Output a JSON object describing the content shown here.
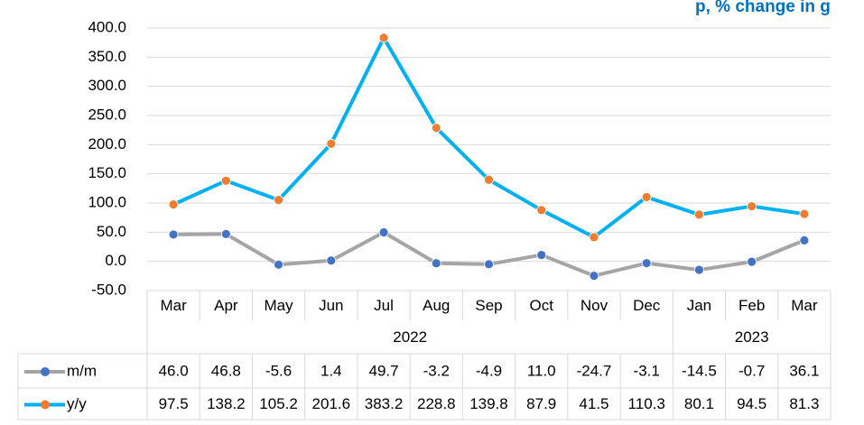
{
  "chart_data": {
    "type": "line",
    "title": "p, % change in g",
    "categories": [
      "Mar",
      "Apr",
      "May",
      "Jun",
      "Jul",
      "Aug",
      "Sep",
      "Oct",
      "Nov",
      "Dec",
      "Jan",
      "Feb",
      "Mar"
    ],
    "category_groups": [
      {
        "label": "2022",
        "span": 10
      },
      {
        "label": "2023",
        "span": 3
      }
    ],
    "series": [
      {
        "name": "m/m",
        "color": "#a5a5a5",
        "marker_color": "#4472c4",
        "values": [
          46.0,
          46.8,
          -5.6,
          1.4,
          49.7,
          -3.2,
          -4.9,
          11.0,
          -24.7,
          -3.1,
          -14.5,
          -0.7,
          36.1
        ],
        "value_labels": [
          "46.0",
          "46.8",
          "-5.6",
          "1.4",
          "49.7",
          "-3.2",
          "-4.9",
          "11.0",
          "-24.7",
          "-3.1",
          "-14.5",
          "-0.7",
          "36.1"
        ]
      },
      {
        "name": "y/y",
        "color": "#00b0f0",
        "marker_color": "#ed7d31",
        "values": [
          97.5,
          138.2,
          105.2,
          201.6,
          383.2,
          228.8,
          139.8,
          87.9,
          41.5,
          110.3,
          80.1,
          94.5,
          81.3
        ],
        "value_labels": [
          "97.5",
          "138.2",
          "105.2",
          "201.6",
          "383.2",
          "228.8",
          "139.8",
          "87.9",
          "41.5",
          "110.3",
          "80.1",
          "94.5",
          "81.3"
        ]
      }
    ],
    "ylim": [
      -50,
      400
    ],
    "yticks": [
      {
        "value": -50,
        "label": "-50.0"
      },
      {
        "value": 0,
        "label": "0.0"
      },
      {
        "value": 50,
        "label": "50.0"
      },
      {
        "value": 100,
        "label": "100.0"
      },
      {
        "value": 150,
        "label": "150.0"
      },
      {
        "value": 200,
        "label": "200.0"
      },
      {
        "value": 250,
        "label": "250.0"
      },
      {
        "value": 300,
        "label": "300.0"
      },
      {
        "value": 350,
        "label": "350.0"
      },
      {
        "value": 400,
        "label": "400.0"
      }
    ],
    "grid": true
  }
}
